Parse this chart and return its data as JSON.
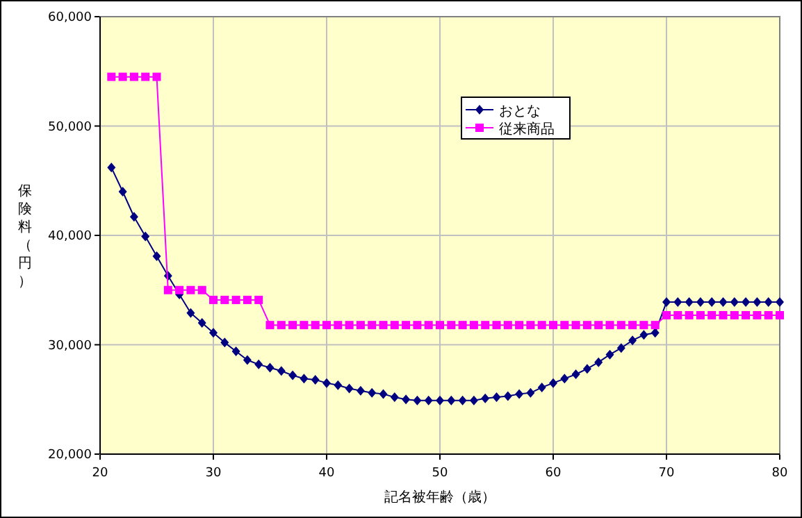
{
  "chart_data": {
    "type": "line",
    "xlabel": "記名被年齢（歳）",
    "ylabel": "保険料（円）",
    "x": [
      21,
      22,
      23,
      24,
      25,
      26,
      27,
      28,
      29,
      30,
      31,
      32,
      33,
      34,
      35,
      36,
      37,
      38,
      39,
      40,
      41,
      42,
      43,
      44,
      45,
      46,
      47,
      48,
      49,
      50,
      51,
      52,
      53,
      54,
      55,
      56,
      57,
      58,
      59,
      60,
      61,
      62,
      63,
      64,
      65,
      66,
      67,
      68,
      69,
      70,
      71,
      72,
      73,
      74,
      75,
      76,
      77,
      78,
      79,
      80
    ],
    "series": [
      {
        "name": "おとな",
        "color": "#000080",
        "marker": "diamond",
        "values": [
          46200,
          44000,
          41700,
          39900,
          38100,
          36300,
          34600,
          32900,
          32000,
          31100,
          30200,
          29400,
          28600,
          28200,
          27900,
          27600,
          27200,
          26900,
          26800,
          26500,
          26300,
          26000,
          25800,
          25600,
          25500,
          25200,
          25000,
          24900,
          24900,
          24900,
          24900,
          24900,
          24900,
          25100,
          25200,
          25300,
          25500,
          25600,
          26100,
          26500,
          26900,
          27300,
          27800,
          28400,
          29100,
          29700,
          30400,
          30900,
          31100,
          33900,
          33900,
          33900,
          33900,
          33900,
          33900,
          33900,
          33900,
          33900,
          33900,
          33900
        ]
      },
      {
        "name": "従来商品",
        "color": "#ff00ff",
        "marker": "square",
        "values": [
          54500,
          54500,
          54500,
          54500,
          54500,
          35000,
          35000,
          35000,
          35000,
          34100,
          34100,
          34100,
          34100,
          34100,
          31800,
          31800,
          31800,
          31800,
          31800,
          31800,
          31800,
          31800,
          31800,
          31800,
          31800,
          31800,
          31800,
          31800,
          31800,
          31800,
          31800,
          31800,
          31800,
          31800,
          31800,
          31800,
          31800,
          31800,
          31800,
          31800,
          31800,
          31800,
          31800,
          31800,
          31800,
          31800,
          31800,
          31800,
          31800,
          32700,
          32700,
          32700,
          32700,
          32700,
          32700,
          32700,
          32700,
          32700,
          32700,
          32700
        ]
      }
    ],
    "xlim": [
      20,
      80
    ],
    "xticks": [
      20,
      30,
      40,
      50,
      60,
      70,
      80
    ],
    "ylim": [
      20000,
      60000
    ],
    "yticks": [
      {
        "value": 20000,
        "label": "20,000"
      },
      {
        "value": 30000,
        "label": "30,000"
      },
      {
        "value": 40000,
        "label": "40,000"
      },
      {
        "value": 50000,
        "label": "50,000"
      },
      {
        "value": 60000,
        "label": "60,000"
      }
    ],
    "grid": true,
    "legend": "top right",
    "line_style": "solid"
  }
}
